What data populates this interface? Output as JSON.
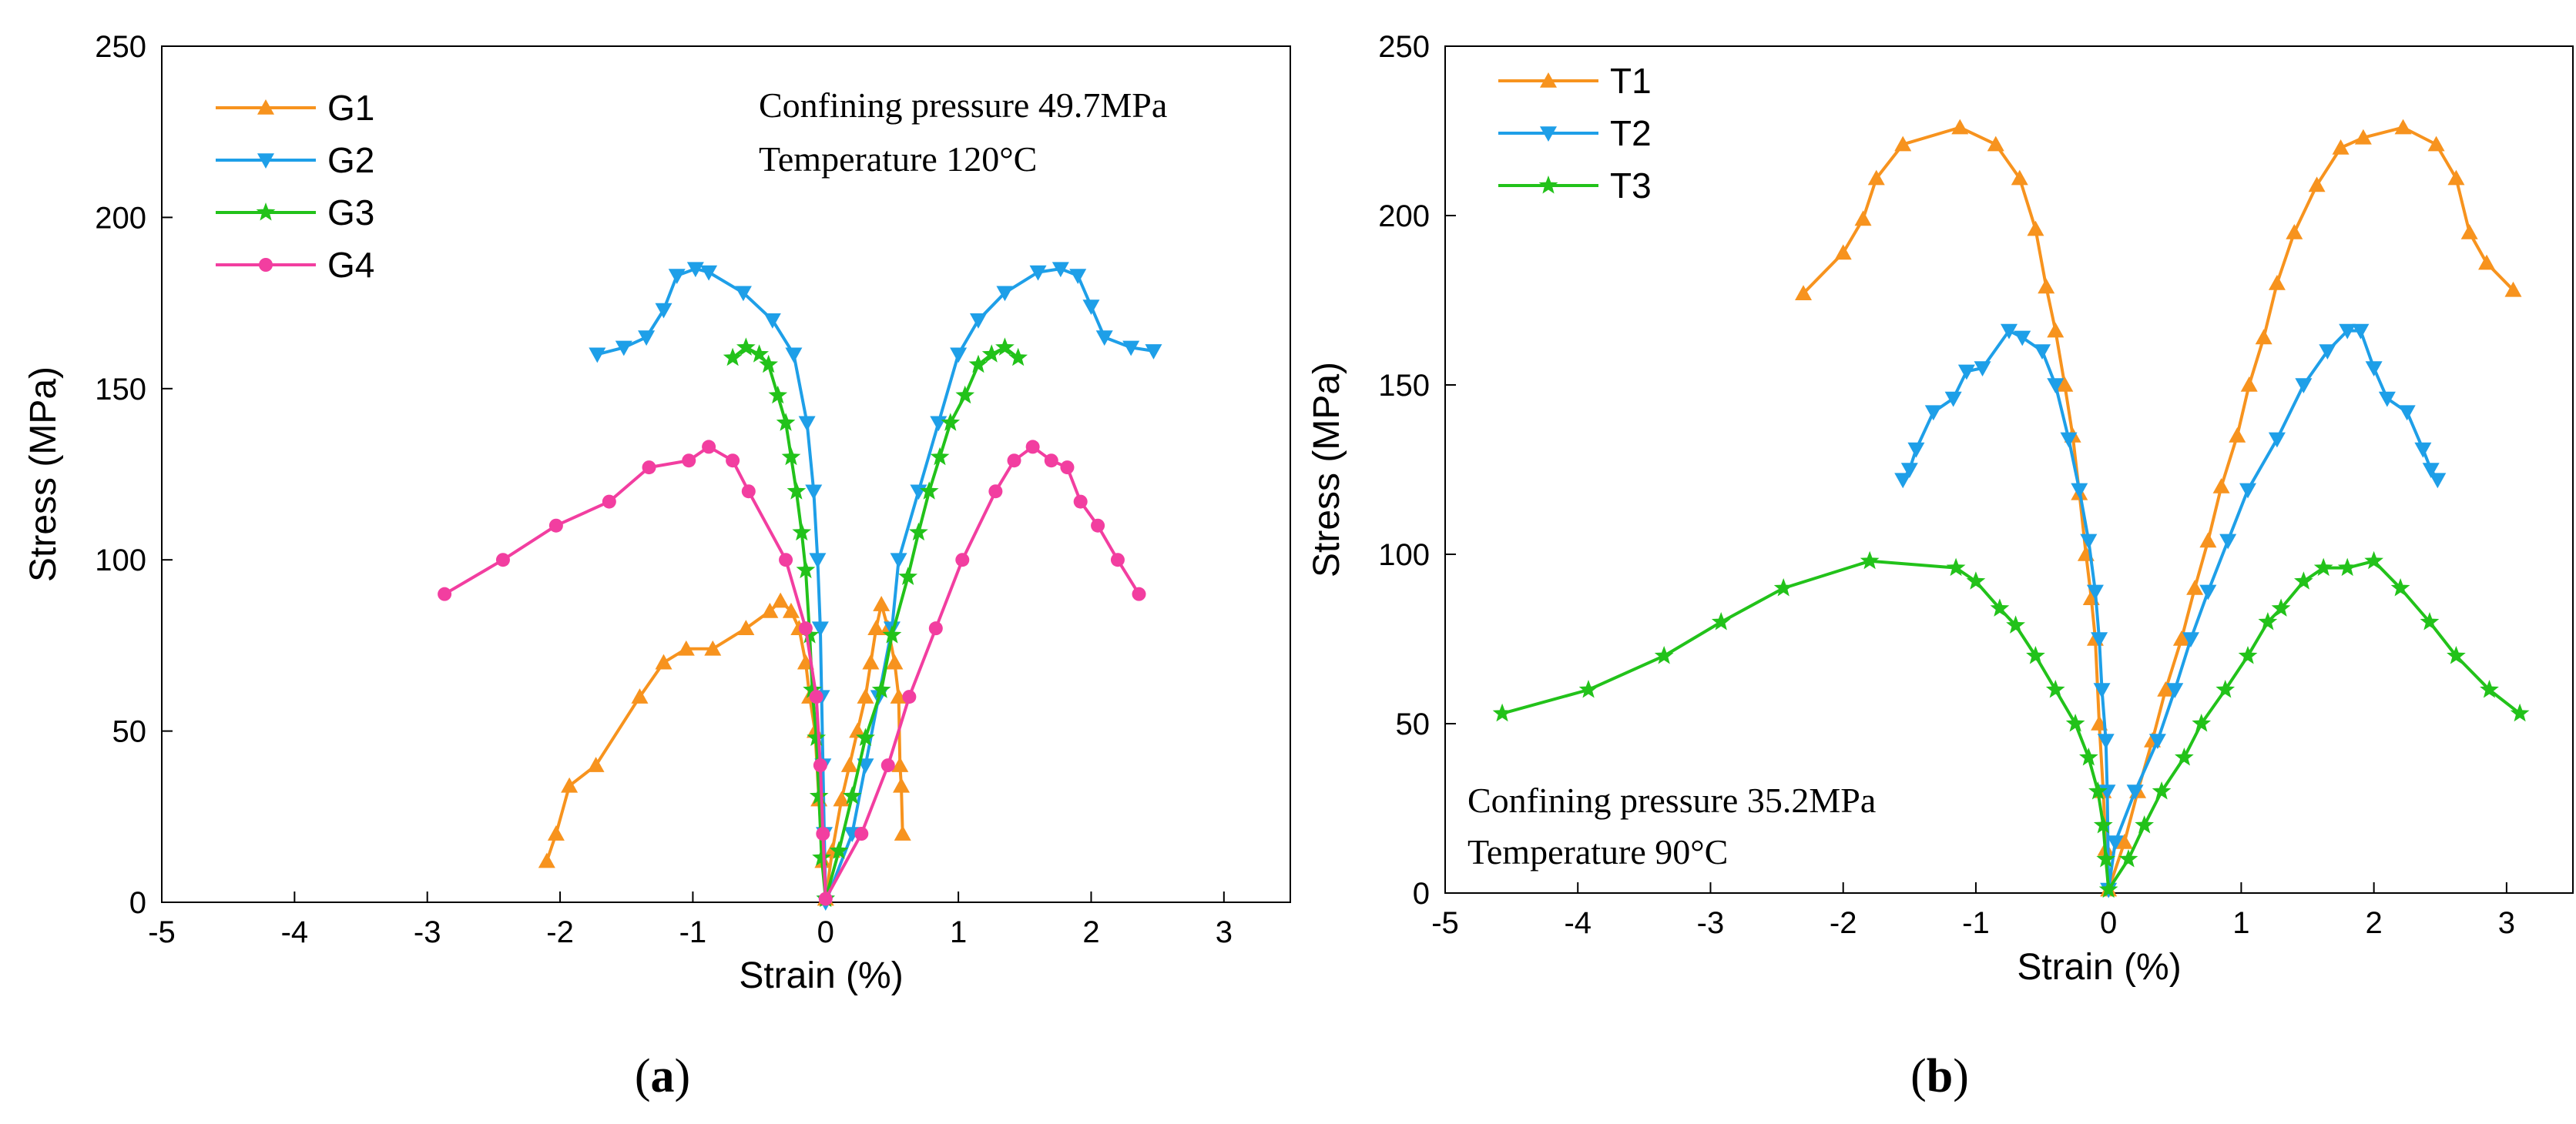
{
  "chart_data": [
    {
      "type": "line",
      "panel": "a",
      "panel_label": "a",
      "xlabel": "Strain (%)",
      "ylabel": "Stress (MPa)",
      "xlim": [
        -5,
        3.5
      ],
      "ylim": [
        0,
        250
      ],
      "xticks": [
        "-5",
        "-4",
        "-3",
        "-2",
        "-1",
        "0",
        "1",
        "2",
        "3"
      ],
      "yticks": [
        "0",
        "50",
        "100",
        "150",
        "200",
        "250"
      ],
      "legend_position": "top-left",
      "annotations": [
        "Confining pressure 49.7MPa",
        "Temperature 120°C"
      ],
      "series": [
        {
          "name": "G1",
          "color": "#F7931E",
          "marker": "triangle-up",
          "points": [
            [
              -2.1,
              12
            ],
            [
              -2.03,
              20
            ],
            [
              -1.93,
              34
            ],
            [
              -1.73,
              40
            ],
            [
              -1.4,
              60
            ],
            [
              -1.22,
              70
            ],
            [
              -1.05,
              74
            ],
            [
              -0.85,
              74
            ],
            [
              -0.6,
              80
            ],
            [
              -0.42,
              85
            ],
            [
              -0.34,
              88
            ],
            [
              -0.26,
              85
            ],
            [
              -0.2,
              80
            ],
            [
              -0.15,
              70
            ],
            [
              -0.12,
              60
            ],
            [
              -0.08,
              50
            ],
            [
              -0.05,
              30
            ],
            [
              -0.02,
              12
            ],
            [
              0,
              1
            ],
            [
              0.05,
              15
            ],
            [
              0.12,
              30
            ],
            [
              0.18,
              40
            ],
            [
              0.24,
              50
            ],
            [
              0.3,
              60
            ],
            [
              0.34,
              70
            ],
            [
              0.38,
              80
            ],
            [
              0.42,
              87
            ],
            [
              0.47,
              80
            ],
            [
              0.52,
              70
            ],
            [
              0.55,
              60
            ],
            [
              0.56,
              40
            ],
            [
              0.57,
              34
            ],
            [
              0.58,
              20
            ]
          ]
        },
        {
          "name": "G2",
          "color": "#1E9FE8",
          "marker": "triangle-down",
          "points": [
            [
              -1.72,
              160
            ],
            [
              -1.52,
              162
            ],
            [
              -1.35,
              165
            ],
            [
              -1.22,
              173
            ],
            [
              -1.12,
              183
            ],
            [
              -0.98,
              185
            ],
            [
              -0.88,
              184
            ],
            [
              -0.62,
              178
            ],
            [
              -0.4,
              170
            ],
            [
              -0.24,
              160
            ],
            [
              -0.14,
              140
            ],
            [
              -0.09,
              120
            ],
            [
              -0.06,
              100
            ],
            [
              -0.04,
              80
            ],
            [
              -0.03,
              60
            ],
            [
              -0.02,
              40
            ],
            [
              -0.01,
              20
            ],
            [
              0,
              0
            ],
            [
              0.2,
              20
            ],
            [
              0.3,
              40
            ],
            [
              0.4,
              60
            ],
            [
              0.5,
              80
            ],
            [
              0.55,
              100
            ],
            [
              0.7,
              120
            ],
            [
              0.85,
              140
            ],
            [
              1.0,
              160
            ],
            [
              1.15,
              170
            ],
            [
              1.35,
              178
            ],
            [
              1.6,
              184
            ],
            [
              1.77,
              185
            ],
            [
              1.9,
              183
            ],
            [
              2.0,
              174
            ],
            [
              2.1,
              165
            ],
            [
              2.3,
              162
            ],
            [
              2.47,
              161
            ]
          ]
        },
        {
          "name": "G3",
          "color": "#22C21A",
          "marker": "star",
          "points": [
            [
              -0.7,
              159
            ],
            [
              -0.6,
              162
            ],
            [
              -0.5,
              160
            ],
            [
              -0.43,
              157
            ],
            [
              -0.36,
              148
            ],
            [
              -0.3,
              140
            ],
            [
              -0.26,
              130
            ],
            [
              -0.22,
              120
            ],
            [
              -0.18,
              108
            ],
            [
              -0.15,
              97
            ],
            [
              -0.12,
              78
            ],
            [
              -0.1,
              62
            ],
            [
              -0.07,
              48
            ],
            [
              -0.05,
              31
            ],
            [
              -0.03,
              13
            ],
            [
              0,
              1
            ],
            [
              0.1,
              15
            ],
            [
              0.2,
              31
            ],
            [
              0.3,
              48
            ],
            [
              0.42,
              62
            ],
            [
              0.5,
              78
            ],
            [
              0.62,
              95
            ],
            [
              0.7,
              108
            ],
            [
              0.78,
              120
            ],
            [
              0.86,
              130
            ],
            [
              0.94,
              140
            ],
            [
              1.05,
              148
            ],
            [
              1.15,
              157
            ],
            [
              1.25,
              160
            ],
            [
              1.35,
              162
            ],
            [
              1.45,
              159
            ]
          ]
        },
        {
          "name": "G4",
          "color": "#F23EA0",
          "marker": "circle",
          "points": [
            [
              -2.87,
              90
            ],
            [
              -2.43,
              100
            ],
            [
              -2.03,
              110
            ],
            [
              -1.63,
              117
            ],
            [
              -1.33,
              127
            ],
            [
              -1.03,
              129
            ],
            [
              -0.88,
              133
            ],
            [
              -0.7,
              129
            ],
            [
              -0.58,
              120
            ],
            [
              -0.3,
              100
            ],
            [
              -0.15,
              80
            ],
            [
              -0.07,
              60
            ],
            [
              -0.04,
              40
            ],
            [
              -0.02,
              20
            ],
            [
              0,
              1
            ],
            [
              0.27,
              20
            ],
            [
              0.47,
              40
            ],
            [
              0.63,
              60
            ],
            [
              0.83,
              80
            ],
            [
              1.03,
              100
            ],
            [
              1.28,
              120
            ],
            [
              1.42,
              129
            ],
            [
              1.56,
              133
            ],
            [
              1.7,
              129
            ],
            [
              1.82,
              127
            ],
            [
              1.92,
              117
            ],
            [
              2.05,
              110
            ],
            [
              2.2,
              100
            ],
            [
              2.36,
              90
            ]
          ]
        }
      ]
    },
    {
      "type": "line",
      "panel": "b",
      "panel_label": "b",
      "xlabel": "Strain (%)",
      "ylabel": "Stress (MPa)",
      "xlim": [
        -5,
        3.5
      ],
      "ylim": [
        0,
        250
      ],
      "xticks": [
        "-5",
        "-4",
        "-3",
        "-2",
        "-1",
        "0",
        "1",
        "2",
        "3"
      ],
      "yticks": [
        "0",
        "50",
        "100",
        "150",
        "200",
        "250"
      ],
      "legend_position": "top-left",
      "annotations": [
        "Confining pressure 35.2MPa",
        "Temperature 90°C"
      ],
      "series": [
        {
          "name": "T1",
          "color": "#F7931E",
          "marker": "triangle-up",
          "points": [
            [
              -2.3,
              177
            ],
            [
              -2.0,
              189
            ],
            [
              -1.85,
              199
            ],
            [
              -1.75,
              211
            ],
            [
              -1.55,
              221
            ],
            [
              -1.12,
              226
            ],
            [
              -0.85,
              221
            ],
            [
              -0.67,
              211
            ],
            [
              -0.55,
              196
            ],
            [
              -0.47,
              179
            ],
            [
              -0.4,
              166
            ],
            [
              -0.33,
              150
            ],
            [
              -0.27,
              135
            ],
            [
              -0.22,
              118
            ],
            [
              -0.17,
              100
            ],
            [
              -0.13,
              87
            ],
            [
              -0.1,
              75
            ],
            [
              -0.07,
              50
            ],
            [
              -0.04,
              30
            ],
            [
              -0.02,
              13
            ],
            [
              0,
              1
            ],
            [
              0.12,
              15
            ],
            [
              0.22,
              30
            ],
            [
              0.33,
              45
            ],
            [
              0.43,
              60
            ],
            [
              0.55,
              75
            ],
            [
              0.65,
              90
            ],
            [
              0.75,
              104
            ],
            [
              0.85,
              120
            ],
            [
              0.97,
              135
            ],
            [
              1.06,
              150
            ],
            [
              1.17,
              164
            ],
            [
              1.27,
              180
            ],
            [
              1.4,
              195
            ],
            [
              1.57,
              209
            ],
            [
              1.75,
              220
            ],
            [
              1.92,
              223
            ],
            [
              2.22,
              226
            ],
            [
              2.47,
              221
            ],
            [
              2.62,
              211
            ],
            [
              2.72,
              195
            ],
            [
              2.85,
              186
            ],
            [
              3.05,
              178
            ]
          ]
        },
        {
          "name": "T2",
          "color": "#1E9FE8",
          "marker": "triangle-down",
          "points": [
            [
              -1.55,
              122
            ],
            [
              -1.5,
              125
            ],
            [
              -1.45,
              131
            ],
            [
              -1.32,
              142
            ],
            [
              -1.17,
              146
            ],
            [
              -1.07,
              154
            ],
            [
              -0.95,
              155
            ],
            [
              -0.75,
              166
            ],
            [
              -0.65,
              164
            ],
            [
              -0.5,
              160
            ],
            [
              -0.4,
              150
            ],
            [
              -0.3,
              134
            ],
            [
              -0.22,
              119
            ],
            [
              -0.15,
              104
            ],
            [
              -0.1,
              89
            ],
            [
              -0.07,
              75
            ],
            [
              -0.05,
              60
            ],
            [
              -0.02,
              45
            ],
            [
              -0.01,
              30
            ],
            [
              0,
              1
            ],
            [
              0.05,
              15
            ],
            [
              0.2,
              30
            ],
            [
              0.37,
              45
            ],
            [
              0.5,
              60
            ],
            [
              0.62,
              75
            ],
            [
              0.75,
              89
            ],
            [
              0.9,
              104
            ],
            [
              1.05,
              119
            ],
            [
              1.27,
              134
            ],
            [
              1.47,
              150
            ],
            [
              1.65,
              160
            ],
            [
              1.8,
              166
            ],
            [
              1.9,
              166
            ],
            [
              2.0,
              155
            ],
            [
              2.1,
              146
            ],
            [
              2.25,
              142
            ],
            [
              2.37,
              131
            ],
            [
              2.43,
              125
            ],
            [
              2.48,
              122
            ]
          ]
        },
        {
          "name": "T3",
          "color": "#22C21A",
          "marker": "star",
          "points": [
            [
              -4.57,
              53
            ],
            [
              -3.92,
              60
            ],
            [
              -3.35,
              70
            ],
            [
              -2.92,
              80
            ],
            [
              -2.45,
              90
            ],
            [
              -1.8,
              98
            ],
            [
              -1.15,
              96
            ],
            [
              -1.0,
              92
            ],
            [
              -0.82,
              84
            ],
            [
              -0.7,
              79
            ],
            [
              -0.55,
              70
            ],
            [
              -0.4,
              60
            ],
            [
              -0.25,
              50
            ],
            [
              -0.15,
              40
            ],
            [
              -0.08,
              30
            ],
            [
              -0.04,
              20
            ],
            [
              -0.02,
              10
            ],
            [
              0,
              1
            ],
            [
              0.15,
              10
            ],
            [
              0.27,
              20
            ],
            [
              0.4,
              30
            ],
            [
              0.57,
              40
            ],
            [
              0.7,
              50
            ],
            [
              0.88,
              60
            ],
            [
              1.05,
              70
            ],
            [
              1.2,
              80
            ],
            [
              1.3,
              84
            ],
            [
              1.47,
              92
            ],
            [
              1.62,
              96
            ],
            [
              1.8,
              96
            ],
            [
              2.0,
              98
            ],
            [
              2.2,
              90
            ],
            [
              2.42,
              80
            ],
            [
              2.62,
              70
            ],
            [
              2.87,
              60
            ],
            [
              3.1,
              53
            ]
          ]
        }
      ]
    }
  ]
}
